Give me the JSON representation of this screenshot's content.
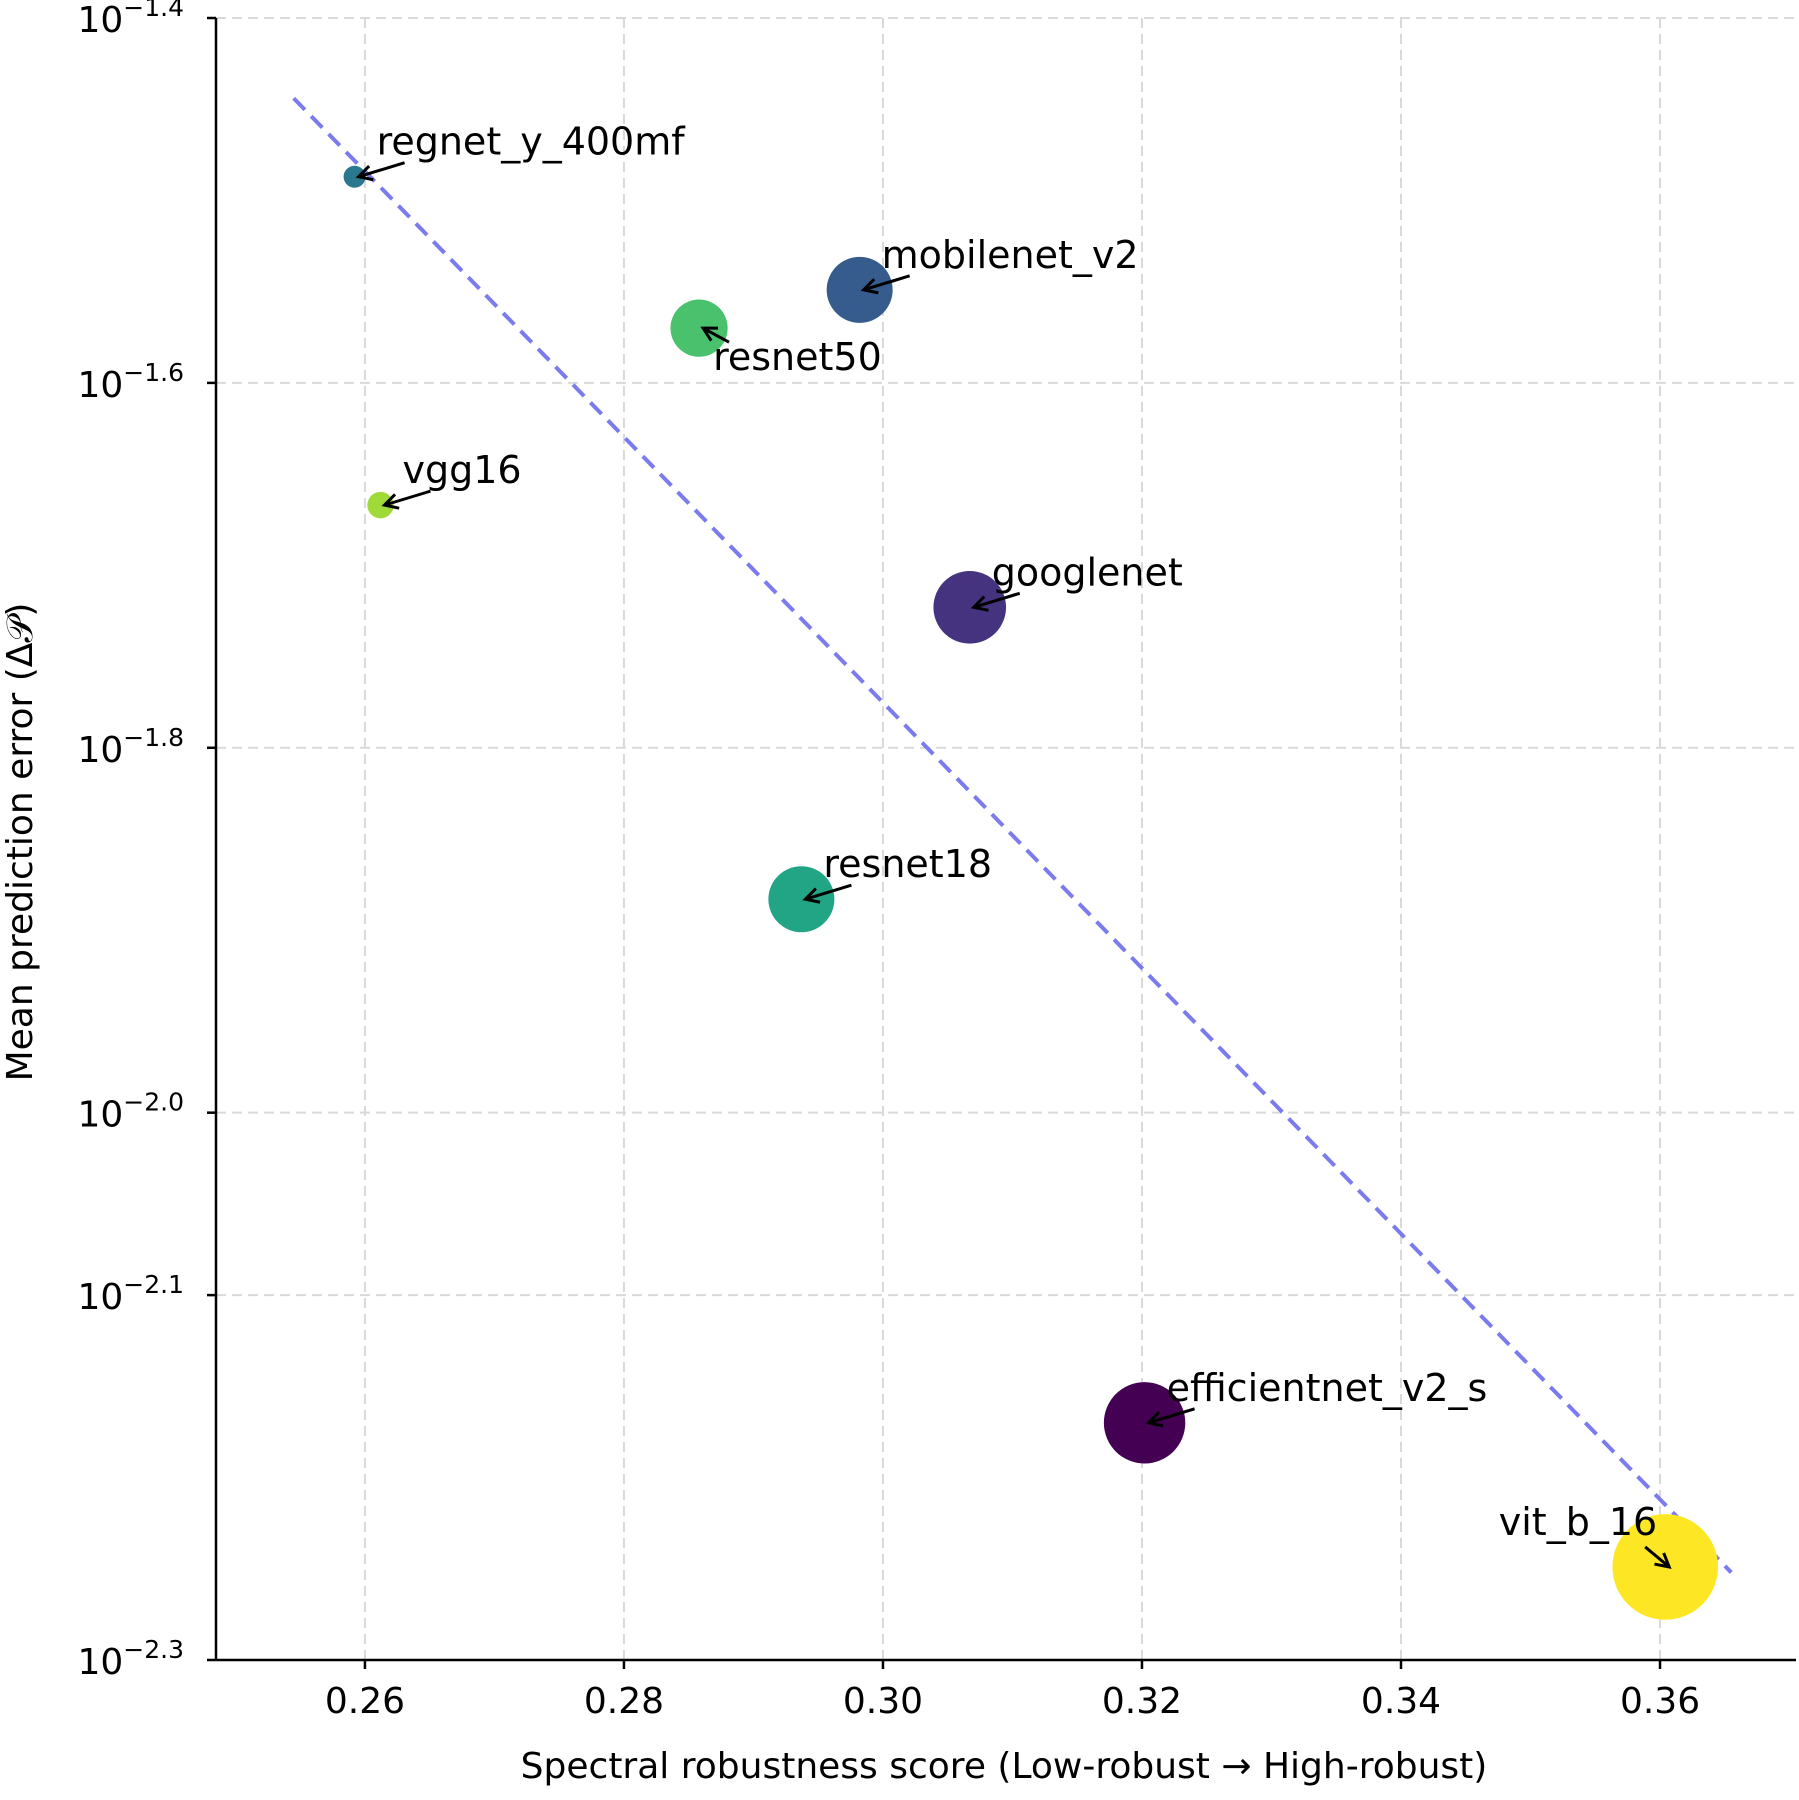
{
  "chart_data": {
    "type": "scatter",
    "title": "",
    "xlabel": "Spectral robustness score (Low-robust → High-robust)",
    "ylabel": "Mean prediction error (Δ𝒫)",
    "xlim": [
      0.2485,
      0.3705
    ],
    "ylim_log10": [
      -2.3,
      -1.4
    ],
    "yscale": "log",
    "grid": true,
    "x_ticks": [
      {
        "value": 0.26,
        "label": "0.26"
      },
      {
        "value": 0.28,
        "label": "0.28"
      },
      {
        "value": 0.3,
        "label": "0.30"
      },
      {
        "value": 0.32,
        "label": "0.32"
      },
      {
        "value": 0.34,
        "label": "0.34"
      },
      {
        "value": 0.36,
        "label": "0.36"
      }
    ],
    "y_ticks": [
      {
        "exp": -1.4,
        "base": "10",
        "sup": "−1.4"
      },
      {
        "exp": -1.6,
        "base": "10",
        "sup": "−1.6"
      },
      {
        "exp": -1.8,
        "base": "10",
        "sup": "−1.8"
      },
      {
        "exp": -2.0,
        "base": "10",
        "sup": "−2.0"
      },
      {
        "exp": -2.1,
        "base": "10",
        "sup": "−2.1"
      },
      {
        "exp": -2.3,
        "base": "10",
        "sup": "−2.3"
      }
    ],
    "trend_line": {
      "color": "#7b7bf0",
      "x_start": 0.2545,
      "log10y_start": -1.444,
      "x_end": 0.3655,
      "log10y_end": -2.252
    },
    "points": [
      {
        "name": "regnet_y_400mf",
        "x": 0.2592,
        "log10y": -1.487,
        "size": 1.0,
        "color": "#2a788e",
        "label_pos": "upper-right"
      },
      {
        "name": "vgg16",
        "x": 0.2612,
        "log10y": -1.667,
        "size": 1.2,
        "color": "#a0da39",
        "label_pos": "upper-right"
      },
      {
        "name": "resnet50",
        "x": 0.2858,
        "log10y": -1.57,
        "size": 2.6,
        "color": "#4ac16d",
        "label_pos": "lower-right"
      },
      {
        "name": "mobilenet_v2",
        "x": 0.2982,
        "log10y": -1.549,
        "size": 3.0,
        "color": "#365c8d",
        "label_pos": "upper-right"
      },
      {
        "name": "googlenet",
        "x": 0.3067,
        "log10y": -1.723,
        "size": 3.3,
        "color": "#46337f",
        "label_pos": "upper-right"
      },
      {
        "name": "resnet18",
        "x": 0.2937,
        "log10y": -1.883,
        "size": 3.0,
        "color": "#21a585",
        "label_pos": "upper-right"
      },
      {
        "name": "efficientnet_v2_s",
        "x": 0.3202,
        "log10y": -2.17,
        "size": 3.7,
        "color": "#440154",
        "label_pos": "upper-right"
      },
      {
        "name": "vit_b_16",
        "x": 0.3604,
        "log10y": -2.249,
        "size": 4.8,
        "color": "#fde725",
        "label_pos": "upper-left"
      }
    ]
  }
}
